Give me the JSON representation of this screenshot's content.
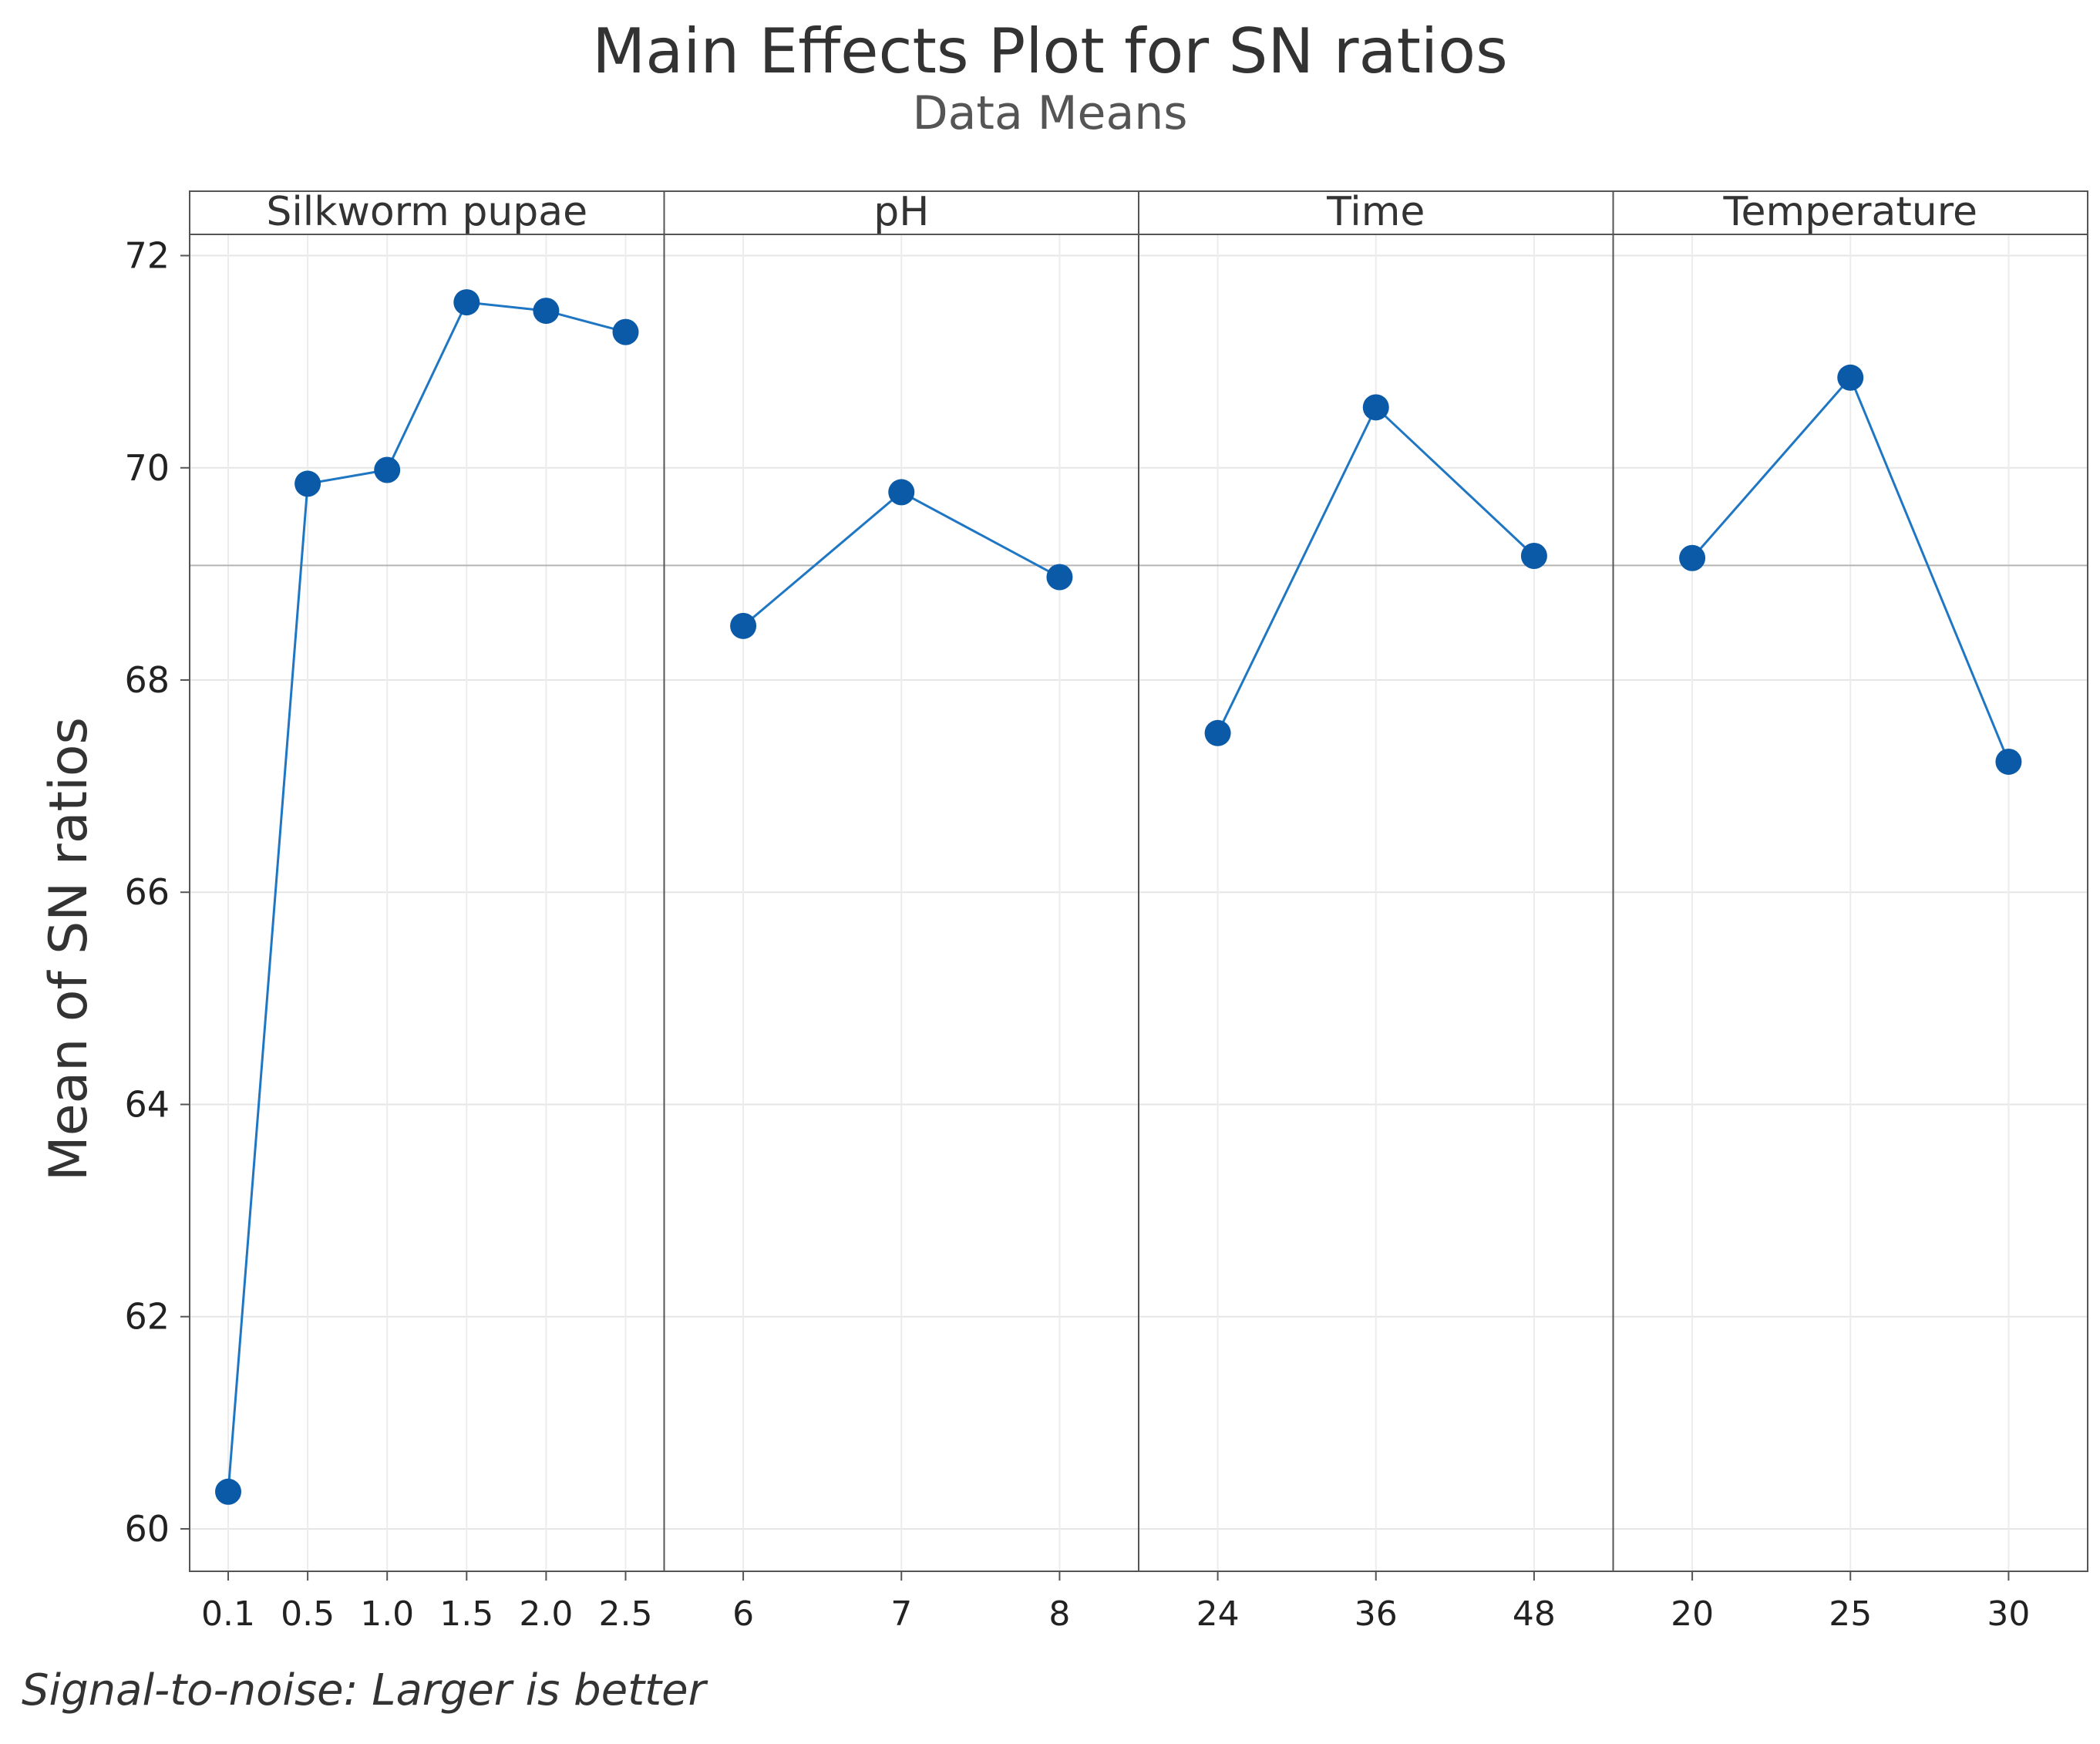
{
  "chart_data": {
    "type": "line",
    "title": "Main Effects Plot for SN ratios",
    "subtitle": "Data Means",
    "ylabel": "Mean of SN ratios",
    "footnote": "Signal-to-noise: Larger is better",
    "ylim": [
      59.6,
      72.2
    ],
    "yticks": [
      60,
      62,
      64,
      66,
      68,
      70,
      72
    ],
    "reference_mean": 69.08,
    "grid": true,
    "series_color": "#1f77c4",
    "marker_color": "#0b5aa8",
    "panels": [
      {
        "name": "Silkworm pupae",
        "levels": [
          "0.1",
          "0.5",
          "1.0",
          "1.5",
          "2.0",
          "2.5"
        ],
        "values": [
          60.35,
          69.85,
          69.98,
          71.56,
          71.48,
          71.28
        ]
      },
      {
        "name": "pH",
        "levels": [
          "6",
          "7",
          "8"
        ],
        "values": [
          68.51,
          69.77,
          68.97
        ]
      },
      {
        "name": "Time",
        "levels": [
          "24",
          "36",
          "48"
        ],
        "values": [
          67.5,
          70.57,
          69.17
        ]
      },
      {
        "name": "Temperature",
        "levels": [
          "20",
          "25",
          "30"
        ],
        "values": [
          69.15,
          70.85,
          67.23
        ]
      }
    ]
  }
}
